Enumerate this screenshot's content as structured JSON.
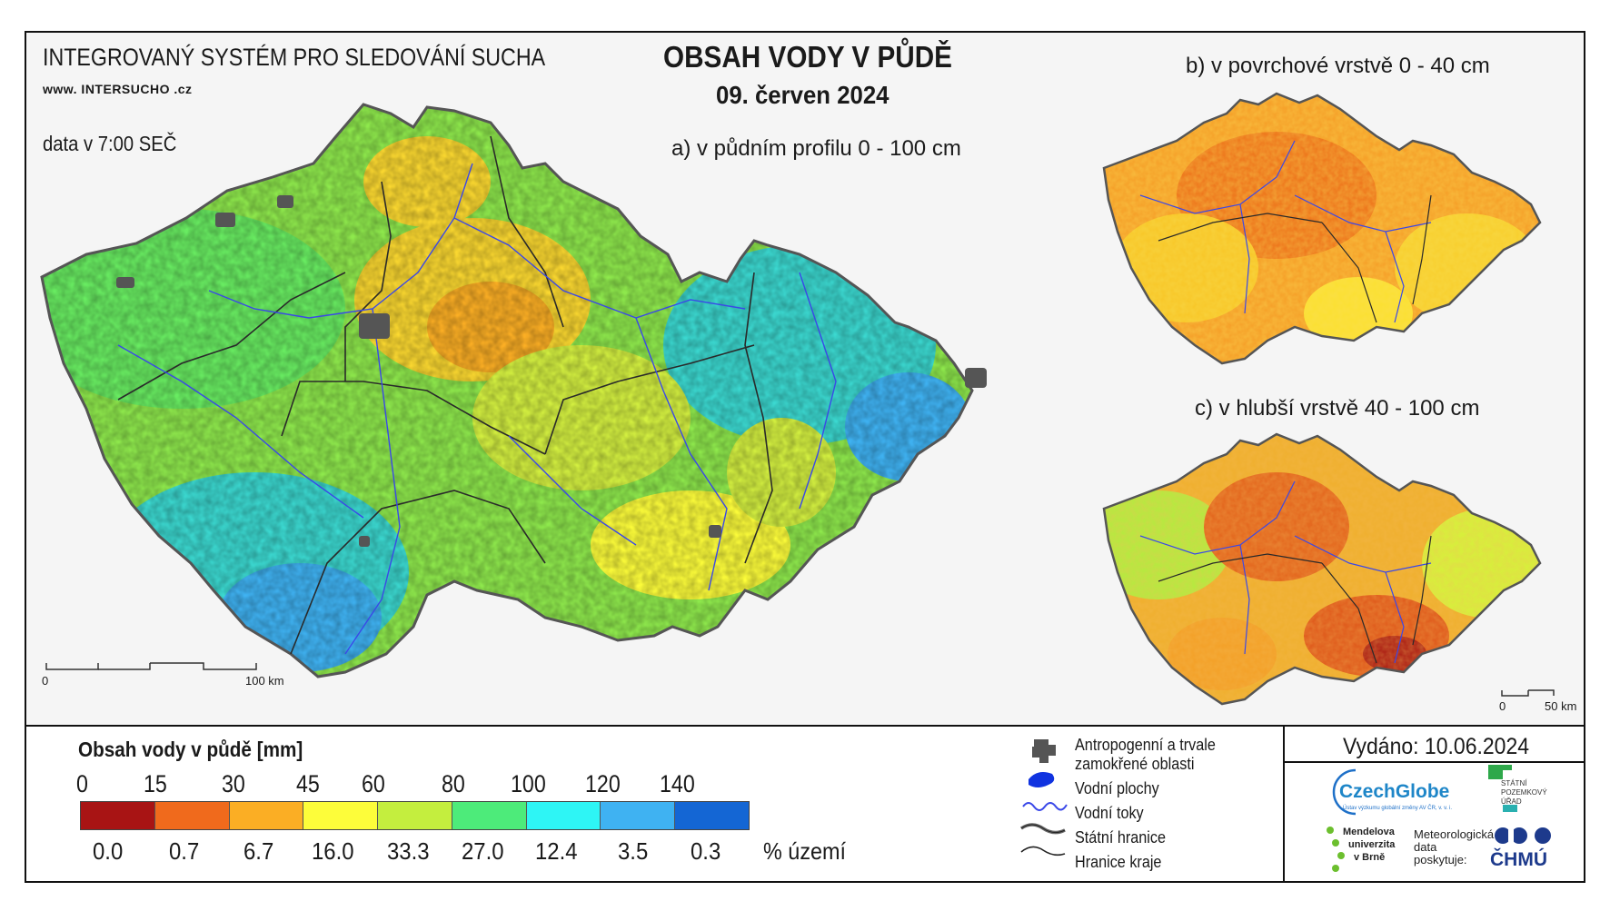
{
  "header": {
    "system_title": "INTEGROVANÝ SYSTÉM PRO SLEDOVÁNÍ SUCHA",
    "website": "www. INTERSUCHO .cz",
    "data_time": "data v 7:00 SEČ",
    "main_title": "OBSAH VODY V PŮDĚ",
    "date": "09. červen 2024"
  },
  "maps": {
    "a_label": "a) v půdním profilu 0 - 100 cm",
    "b_label": "b) v povrchové vrstvě 0 - 40 cm",
    "c_label": "c) v hlubší vrstvě 40 - 100 cm",
    "scale_a": {
      "start": "0",
      "end": "100 km"
    },
    "scale_c": {
      "start": "0",
      "end": "50 km"
    }
  },
  "legend": {
    "title": "Obsah vody v půdě  [mm]",
    "thresholds": [
      "0",
      "15",
      "30",
      "45",
      "60",
      "80",
      "100",
      "120",
      "140"
    ],
    "classes": [
      {
        "color": "#a81414",
        "percent": "0.0"
      },
      {
        "color": "#f06a1c",
        "percent": "0.7"
      },
      {
        "color": "#fbae24",
        "percent": "6.7"
      },
      {
        "color": "#fdfd3a",
        "percent": "16.0"
      },
      {
        "color": "#c4ee3e",
        "percent": "33.3"
      },
      {
        "color": "#4deb7a",
        "percent": "27.0"
      },
      {
        "color": "#2ef5f5",
        "percent": "12.4"
      },
      {
        "color": "#3fb2f2",
        "percent": "3.5"
      },
      {
        "color": "#1466d4",
        "percent": "0.3"
      }
    ],
    "percent_unit": "% území"
  },
  "symbols": {
    "anthropogenic_line1": "Antropogenní a trvale",
    "anthropogenic_line2": "zamokřené oblasti",
    "water_bodies": "Vodní plochy",
    "water_streams": "Vodní toky",
    "state_border": "Státní hranice",
    "region_border": "Hranice kraje"
  },
  "footer": {
    "issued": "Vydáno: 10.06.2024",
    "logos": {
      "czechglobe": "CzechGlobe",
      "czechglobe_sub": "Ústav výzkumu globální změny AV ČR, v. v. i.",
      "spu_line1": "STÁTNÍ",
      "spu_line2": "POZEMKOVÝ",
      "spu_line3": "ÚŘAD",
      "mendel_line1": "Mendelova",
      "mendel_line2": "univerzita",
      "mendel_line3": "v Brně",
      "met_line1": "Meteorologická",
      "met_line2": "data",
      "met_line3": "poskytuje:",
      "chmu": "ČHMÚ"
    }
  }
}
